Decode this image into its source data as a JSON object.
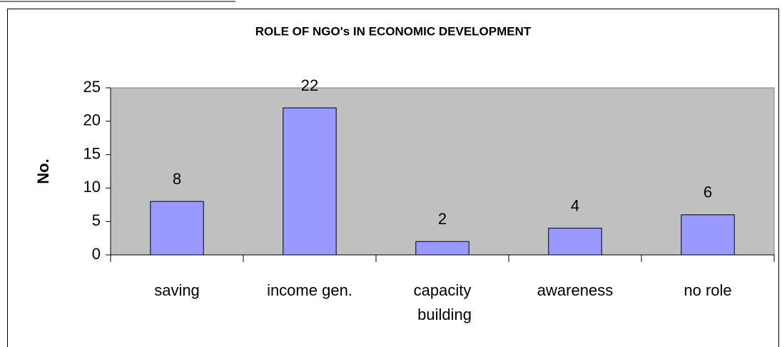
{
  "chart_data": {
    "type": "bar",
    "title": "ROLE OF NGO's IN ECONOMIC DEVELOPMENT",
    "y_label": "No.",
    "categories": [
      "saving",
      "income gen.",
      "capacity building",
      "awareness",
      "no role"
    ],
    "values": [
      8,
      22,
      2,
      4,
      6
    ],
    "color": "#9999ff",
    "plot_background": "#c0c0c0",
    "ylim": [
      0,
      25
    ],
    "yticks": [
      0,
      5,
      10,
      15,
      20,
      25
    ],
    "grid": false,
    "data_labels": true
  }
}
